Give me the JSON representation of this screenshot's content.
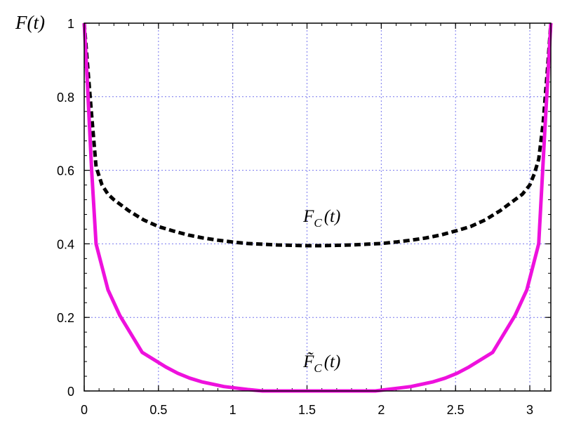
{
  "chart_data": {
    "type": "line",
    "ylabel": "F(t)",
    "xlim": [
      0,
      3.1416
    ],
    "ylim": [
      0,
      1
    ],
    "grid": true,
    "x_ticks": [
      "0",
      "0.5",
      "1",
      "1.5",
      "2",
      "2.5",
      "3"
    ],
    "x_tick_values": [
      0,
      0.5,
      1,
      1.5,
      2,
      2.5,
      3
    ],
    "y_ticks": [
      "0",
      "0.2",
      "0.4",
      "0.6",
      "0.8",
      "1"
    ],
    "y_tick_values": [
      0,
      0.2,
      0.4,
      0.6,
      0.8,
      1
    ],
    "series": [
      {
        "name": "F_C(t)",
        "label_main": "F",
        "label_sub": "C",
        "label_arg": "(t)",
        "color": "#000000",
        "style": "dashed",
        "label_at": [
          1.6,
          0.46
        ],
        "x": [
          0.0,
          0.02,
          0.05,
          0.08,
          0.12,
          0.16,
          0.2,
          0.3,
          0.4,
          0.5,
          0.6,
          0.7,
          0.8,
          0.9,
          1.0,
          1.1,
          1.2,
          1.3,
          1.4,
          1.5,
          1.57,
          1.6,
          1.7,
          1.8,
          1.9,
          2.0,
          2.1,
          2.2,
          2.3,
          2.4,
          2.5,
          2.6,
          2.7,
          2.8,
          2.9,
          2.95,
          3.0,
          3.03,
          3.06,
          3.09,
          3.12,
          3.1416
        ],
        "y": [
          1.0,
          0.9,
          0.75,
          0.61,
          0.56,
          0.535,
          0.52,
          0.49,
          0.465,
          0.447,
          0.435,
          0.424,
          0.416,
          0.41,
          0.405,
          0.401,
          0.399,
          0.397,
          0.396,
          0.395,
          0.395,
          0.395,
          0.396,
          0.397,
          0.399,
          0.401,
          0.405,
          0.41,
          0.416,
          0.424,
          0.435,
          0.447,
          0.465,
          0.49,
          0.52,
          0.535,
          0.56,
          0.59,
          0.63,
          0.73,
          0.88,
          1.0
        ]
      },
      {
        "name": "F̃_C(t)",
        "label_main": "F̃",
        "label_sub": "C",
        "label_arg": "(t)",
        "color": "#ee11dd",
        "style": "solid",
        "label_at": [
          1.6,
          0.065
        ],
        "x": [
          0.0,
          0.02,
          0.05,
          0.08,
          0.16,
          0.24,
          0.39,
          0.55,
          0.63,
          0.71,
          0.79,
          0.94,
          1.02,
          1.1,
          1.2,
          1.96,
          2.04,
          2.12,
          2.2,
          2.35,
          2.43,
          2.51,
          2.59,
          2.75,
          2.9,
          2.98,
          3.06,
          3.1,
          3.1416
        ],
        "y": [
          1.0,
          0.85,
          0.6,
          0.4,
          0.275,
          0.205,
          0.105,
          0.065,
          0.048,
          0.035,
          0.025,
          0.012,
          0.008,
          0.004,
          0.0,
          0.0,
          0.004,
          0.008,
          0.012,
          0.025,
          0.035,
          0.048,
          0.065,
          0.105,
          0.205,
          0.275,
          0.4,
          0.7,
          1.0
        ]
      }
    ]
  }
}
